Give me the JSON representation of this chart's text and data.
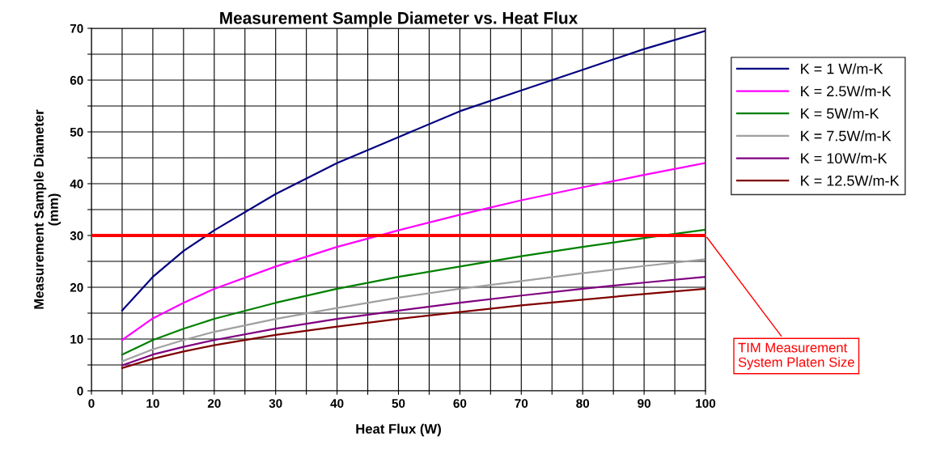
{
  "chart_data": {
    "type": "line",
    "title": "Measurement Sample Diameter vs. Heat Flux",
    "xlabel": "Heat Flux (W)",
    "ylabel": "Measurement Sample Diameter\n(mm)",
    "x": [
      5,
      10,
      15,
      20,
      30,
      40,
      50,
      60,
      70,
      80,
      90,
      100
    ],
    "series": [
      {
        "name": "K = 1 W/m-K",
        "color": "#000080",
        "values": [
          15.5,
          22,
          27,
          31,
          38,
          44,
          49,
          54,
          58,
          62,
          66,
          69.5
        ]
      },
      {
        "name": "K = 2.5W/m-K",
        "color": "#ff00ff",
        "values": [
          9.8,
          14,
          17,
          19.7,
          24,
          27.8,
          31,
          34,
          36.8,
          39.3,
          41.7,
          44
        ]
      },
      {
        "name": "K = 5W/m-K",
        "color": "#008000",
        "values": [
          7,
          9.8,
          12,
          13.9,
          17,
          19.7,
          22,
          24,
          26,
          27.8,
          29.5,
          31.1
        ]
      },
      {
        "name": "K = 7.5W/m-K",
        "color": "#a0a0a0",
        "values": [
          5.7,
          8,
          9.8,
          11.4,
          13.9,
          16,
          18,
          19.7,
          21.2,
          22.7,
          24.1,
          25.4
        ]
      },
      {
        "name": "K = 10W/m-K",
        "color": "#800080",
        "values": [
          4.9,
          7,
          8.5,
          9.8,
          12,
          13.9,
          15.5,
          17,
          18.4,
          19.7,
          20.9,
          22
        ]
      },
      {
        "name": "K = 12.5W/m-K",
        "color": "#800000",
        "values": [
          4.4,
          6.2,
          7.6,
          8.8,
          10.8,
          12.4,
          13.9,
          15.2,
          16.5,
          17.6,
          18.7,
          19.7
        ]
      }
    ],
    "xlim": [
      0,
      100
    ],
    "ylim": [
      0,
      70
    ],
    "xticks": [
      0,
      {
        "value": 5,
        "label": null
      },
      10,
      {
        "value": 15,
        "label": null
      },
      20,
      {
        "value": 25,
        "label": null
      },
      30,
      {
        "value": 35,
        "label": null
      },
      40,
      {
        "value": 45,
        "label": null
      },
      50,
      {
        "value": 55,
        "label": null
      },
      60,
      {
        "value": 65,
        "label": null
      },
      70,
      {
        "value": 75,
        "label": null
      },
      80,
      {
        "value": 85,
        "label": null
      },
      90,
      {
        "value": 95,
        "label": null
      },
      100
    ],
    "yticks": [
      0,
      {
        "value": 5,
        "label": null
      },
      10,
      {
        "value": 15,
        "label": null
      },
      20,
      {
        "value": 25,
        "label": null
      },
      30,
      {
        "value": 35,
        "label": null
      },
      40,
      {
        "value": 45,
        "label": null
      },
      50,
      {
        "value": 55,
        "label": null
      },
      60,
      {
        "value": 65,
        "label": null
      },
      70
    ],
    "ref_lines": [
      {
        "axis": "y",
        "value": 30,
        "label": "TIM Measurement\nSystem Platen Size",
        "color": "#ff0000"
      }
    ],
    "grid": true,
    "legend": "right",
    "marker": "none",
    "line_style": "solid"
  }
}
